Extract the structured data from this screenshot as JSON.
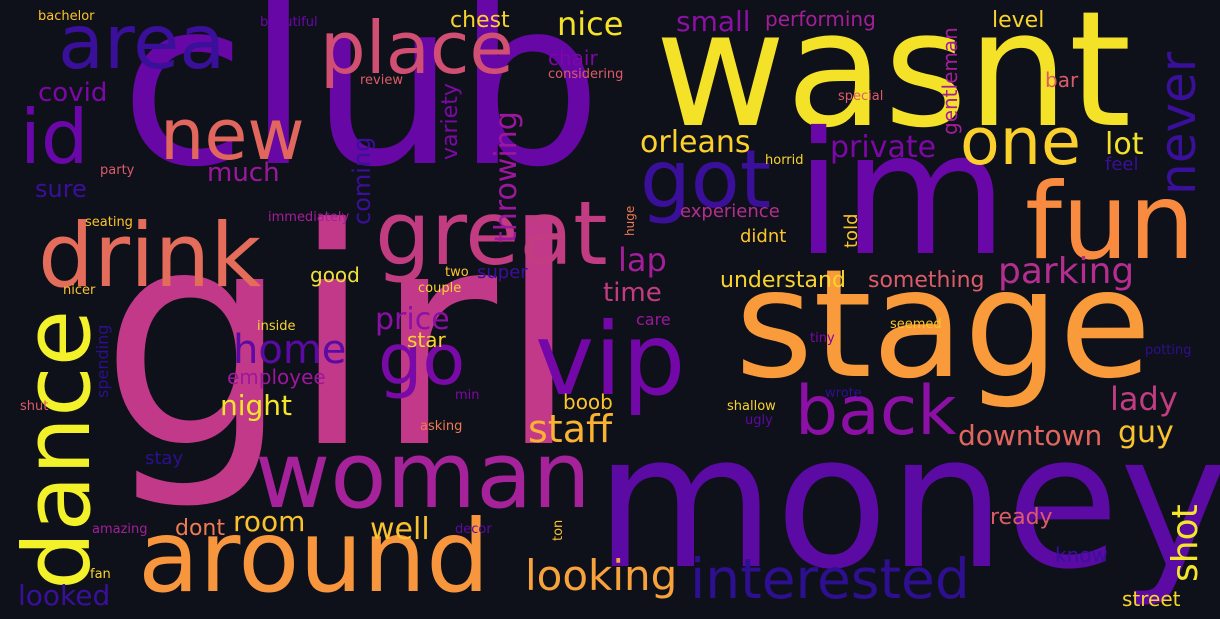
{
  "colors": {
    "background": "#0f111a",
    "palette": [
      "#2d0f8f",
      "#5b0aa4",
      "#7d07a8",
      "#a41e9a",
      "#c23c81",
      "#db5c68",
      "#ee7b51",
      "#f99c3b",
      "#fdc42a",
      "#f3f22a"
    ]
  },
  "words": [
    {
      "text": "girl",
      "color": "#c2398a"
    },
    {
      "text": "club",
      "color": "#6707a6"
    },
    {
      "text": "wasnt",
      "color": "#f4e229"
    },
    {
      "text": "money",
      "color": "#5b0aa4"
    },
    {
      "text": "im",
      "color": "#6a07a9"
    },
    {
      "text": "stage",
      "color": "#f99a3b"
    },
    {
      "text": "woman",
      "color": "#a6229a"
    },
    {
      "text": "around",
      "color": "#f8963d"
    },
    {
      "text": "dance",
      "color": "#f3f22a"
    },
    {
      "text": "great",
      "color": "#c13c81"
    },
    {
      "text": "drink",
      "color": "#e36d5a"
    },
    {
      "text": "area",
      "color": "#3a0f9a"
    },
    {
      "text": "place",
      "color": "#d14f73"
    },
    {
      "text": "new",
      "color": "#e0665e"
    },
    {
      "text": "fun",
      "color": "#f98b40"
    },
    {
      "text": "vip",
      "color": "#7307a8"
    },
    {
      "text": "back",
      "color": "#8c0fa6"
    },
    {
      "text": "go",
      "color": "#7a0aa8"
    },
    {
      "text": "one",
      "color": "#fbd02c"
    },
    {
      "text": "got",
      "color": "#3a0f9a"
    },
    {
      "text": "id",
      "color": "#6a07a9"
    },
    {
      "text": "interested",
      "color": "#2d0f8f"
    },
    {
      "text": "looking",
      "color": "#f7a23b"
    },
    {
      "text": "never",
      "color": "#3a0f9a"
    },
    {
      "text": "home",
      "color": "#5b0aa4"
    },
    {
      "text": "staff",
      "color": "#f9b231"
    },
    {
      "text": "parking",
      "color": "#b42e8f"
    },
    {
      "text": "shot",
      "color": "#f3e62a"
    },
    {
      "text": "downtown",
      "color": "#e0665e"
    },
    {
      "text": "lady",
      "color": "#c23c81"
    },
    {
      "text": "orleans",
      "color": "#fdd12b"
    },
    {
      "text": "lap",
      "color": "#a41e9a"
    },
    {
      "text": "nice",
      "color": "#f4e229"
    },
    {
      "text": "private",
      "color": "#7d07a8"
    },
    {
      "text": "well",
      "color": "#f9c22e"
    },
    {
      "text": "room",
      "color": "#f9c22e"
    },
    {
      "text": "price",
      "color": "#8c0fa6"
    },
    {
      "text": "night",
      "color": "#f3e62a"
    },
    {
      "text": "guy",
      "color": "#f9c22e"
    },
    {
      "text": "time",
      "color": "#c23c81"
    },
    {
      "text": "throwing",
      "color": "#9c179e"
    },
    {
      "text": "covid",
      "color": "#7d07a8"
    },
    {
      "text": "much",
      "color": "#9c179e"
    },
    {
      "text": "sure",
      "color": "#3a0f9a"
    },
    {
      "text": "small",
      "color": "#8c0fa6"
    },
    {
      "text": "lot",
      "color": "#f4e229"
    },
    {
      "text": "looked",
      "color": "#3a0f9a"
    },
    {
      "text": "understand",
      "color": "#f9d32d"
    },
    {
      "text": "something",
      "color": "#db5c68"
    },
    {
      "text": "chest",
      "color": "#f9d32d"
    },
    {
      "text": "coming",
      "color": "#3a0f9a"
    },
    {
      "text": "ready",
      "color": "#db5c68"
    },
    {
      "text": "street",
      "color": "#f9d32d"
    },
    {
      "text": "employee",
      "color": "#9c179e"
    },
    {
      "text": "level",
      "color": "#f9d32d"
    },
    {
      "text": "gentleman",
      "color": "#a41e9a"
    },
    {
      "text": "dont",
      "color": "#ee7b51"
    },
    {
      "text": "good",
      "color": "#f0e03a"
    },
    {
      "text": "variety",
      "color": "#7d07a8"
    },
    {
      "text": "performing",
      "color": "#a41e9a"
    },
    {
      "text": "experience",
      "color": "#b42e8f"
    },
    {
      "text": "star",
      "color": "#f9d32d"
    },
    {
      "text": "boob",
      "color": "#fdc42a"
    },
    {
      "text": "didnt",
      "color": "#fdc42a"
    },
    {
      "text": "super",
      "color": "#3a0f9a"
    },
    {
      "text": "chair",
      "color": "#7d07a8"
    },
    {
      "text": "know",
      "color": "#3a0f9a"
    },
    {
      "text": "bar",
      "color": "#db5c68"
    },
    {
      "text": "feel",
      "color": "#3a0f9a"
    },
    {
      "text": "told",
      "color": "#f9c22e"
    },
    {
      "text": "stay",
      "color": "#2d0f8f"
    },
    {
      "text": "spending",
      "color": "#2d0f8f"
    },
    {
      "text": "care",
      "color": "#9c179e"
    },
    {
      "text": "fan",
      "color": "#f9d32d"
    },
    {
      "text": "amazing",
      "color": "#a41e9a"
    },
    {
      "text": "decor",
      "color": "#5b0aa4"
    },
    {
      "text": "ton",
      "color": "#fdc42a"
    },
    {
      "text": "bachelor",
      "color": "#fdc42a"
    },
    {
      "text": "beautiful",
      "color": "#6a07a9"
    },
    {
      "text": "review",
      "color": "#db5c68"
    },
    {
      "text": "considering",
      "color": "#db5c68"
    },
    {
      "text": "special",
      "color": "#db5c68"
    },
    {
      "text": "horrid",
      "color": "#f9d32d"
    },
    {
      "text": "party",
      "color": "#db5c68"
    },
    {
      "text": "seating",
      "color": "#fdc42a"
    },
    {
      "text": "immediately",
      "color": "#a41e9a"
    },
    {
      "text": "huge",
      "color": "#ee7b51"
    },
    {
      "text": "two",
      "color": "#fdc42a"
    },
    {
      "text": "couple",
      "color": "#f9d32d"
    },
    {
      "text": "nicer",
      "color": "#f9c22e"
    },
    {
      "text": "inside",
      "color": "#f9d32d"
    },
    {
      "text": "seemed",
      "color": "#fdc42a"
    },
    {
      "text": "tiny",
      "color": "#7d07a8"
    },
    {
      "text": "potting",
      "color": "#2d0f8f"
    },
    {
      "text": "min",
      "color": "#7d07a8"
    },
    {
      "text": "shallow",
      "color": "#f9d32d"
    },
    {
      "text": "ugly",
      "color": "#5b0aa4"
    },
    {
      "text": "wrote",
      "color": "#2d0f8f"
    },
    {
      "text": "asking",
      "color": "#ee7b51"
    },
    {
      "text": "shut",
      "color": "#db5c68"
    }
  ]
}
